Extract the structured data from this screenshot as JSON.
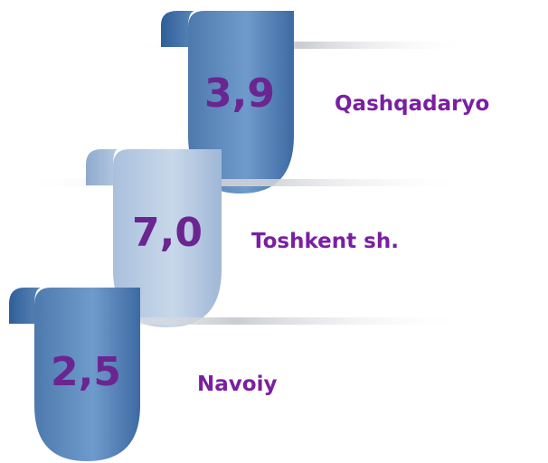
{
  "items": [
    {
      "value": "3,9",
      "label": "Qashqadaryo"
    },
    {
      "value": "7,0",
      "label": "Toshkent sh."
    },
    {
      "value": "2,5",
      "label": "Navoiy"
    }
  ]
}
